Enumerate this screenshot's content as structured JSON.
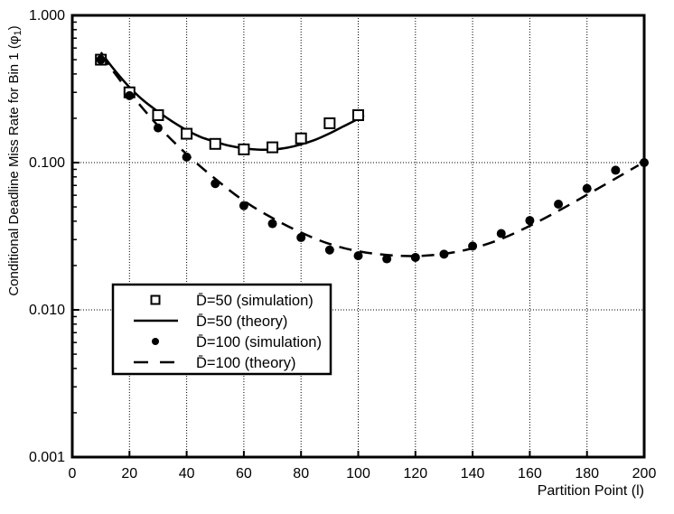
{
  "chart_data": {
    "type": "line",
    "title": "",
    "xlabel": "Partition Point (l)",
    "ylabel": "Conditional Deadline Miss Rate for Bin 1 (φ1)",
    "ylabel_parts": {
      "prefix": "Conditional Deadline Miss Rate for Bin 1 (φ",
      "sub": "1",
      "suffix": ")"
    },
    "x_axis": {
      "min": 0,
      "max": 200,
      "ticks": [
        0,
        20,
        40,
        60,
        80,
        100,
        120,
        140,
        160,
        180,
        200
      ],
      "gridlines": [
        20,
        40,
        60,
        80,
        100,
        120,
        140,
        160,
        180
      ],
      "grid": "dotted"
    },
    "y_axis": {
      "scale": "log",
      "min": 0.001,
      "max": 1.0,
      "ticks": [
        {
          "value": 1.0,
          "label": "1.000"
        },
        {
          "value": 0.1,
          "label": "0.100"
        },
        {
          "value": 0.01,
          "label": "0.010"
        },
        {
          "value": 0.001,
          "label": "0.001"
        }
      ],
      "gridlines": [
        0.1,
        0.01
      ],
      "minor_tick_decades": [
        1,
        0.1,
        0.01
      ],
      "grid": "dotted"
    },
    "series": [
      {
        "name": "D̄=50 (simulation)",
        "style": "open-square",
        "x": [
          10,
          20,
          30,
          40,
          50,
          60,
          70,
          80,
          90,
          100
        ],
        "values": [
          0.5,
          0.3,
          0.21,
          0.157,
          0.134,
          0.123,
          0.127,
          0.146,
          0.185,
          0.21
        ]
      },
      {
        "name": "D̄=50 (theory)",
        "style": "solid-line",
        "x": [
          10,
          15,
          20,
          25,
          30,
          35,
          40,
          45,
          50,
          55,
          60,
          65,
          70,
          75,
          80,
          85,
          90,
          95,
          100,
          102
        ],
        "values": [
          0.56,
          0.42,
          0.325,
          0.263,
          0.222,
          0.19,
          0.166,
          0.149,
          0.1385,
          0.13,
          0.125,
          0.1225,
          0.1228,
          0.126,
          0.133,
          0.143,
          0.158,
          0.177,
          0.198,
          0.21
        ]
      },
      {
        "name": "D̄=100 (simulation)",
        "style": "filled-circle",
        "x": [
          10,
          20,
          30,
          40,
          50,
          60,
          70,
          80,
          90,
          100,
          110,
          120,
          130,
          140,
          150,
          160,
          170,
          180,
          190,
          200
        ],
        "values": [
          0.5,
          0.285,
          0.172,
          0.109,
          0.072,
          0.051,
          0.0385,
          0.031,
          0.0255,
          0.0233,
          0.0222,
          0.0227,
          0.0239,
          0.0271,
          0.033,
          0.0404,
          0.0522,
          0.0667,
          0.0888,
          0.1
        ]
      },
      {
        "name": "D̄=100 (theory)",
        "style": "dashed-line",
        "x": [
          10,
          20,
          30,
          40,
          50,
          60,
          70,
          80,
          90,
          100,
          110,
          120,
          130,
          140,
          150,
          160,
          170,
          180,
          190,
          198
        ],
        "values": [
          0.54,
          0.3,
          0.178,
          0.114,
          0.0775,
          0.055,
          0.042,
          0.0335,
          0.028,
          0.025,
          0.0236,
          0.0232,
          0.024,
          0.0262,
          0.0303,
          0.0372,
          0.047,
          0.0605,
          0.078,
          0.096
        ]
      }
    ],
    "legend": {
      "position": "inside-center-left",
      "entries": [
        {
          "marker": "open-square",
          "label": "D̄=50 (simulation)"
        },
        {
          "marker": "solid-line",
          "label": "D̄=50 (theory)"
        },
        {
          "marker": "filled-circle",
          "label": "D̄=100 (simulation)"
        },
        {
          "marker": "dashed-line",
          "label": "D̄=100 (theory)"
        }
      ]
    },
    "colors": {
      "foreground": "#000000",
      "background": "#ffffff"
    }
  }
}
